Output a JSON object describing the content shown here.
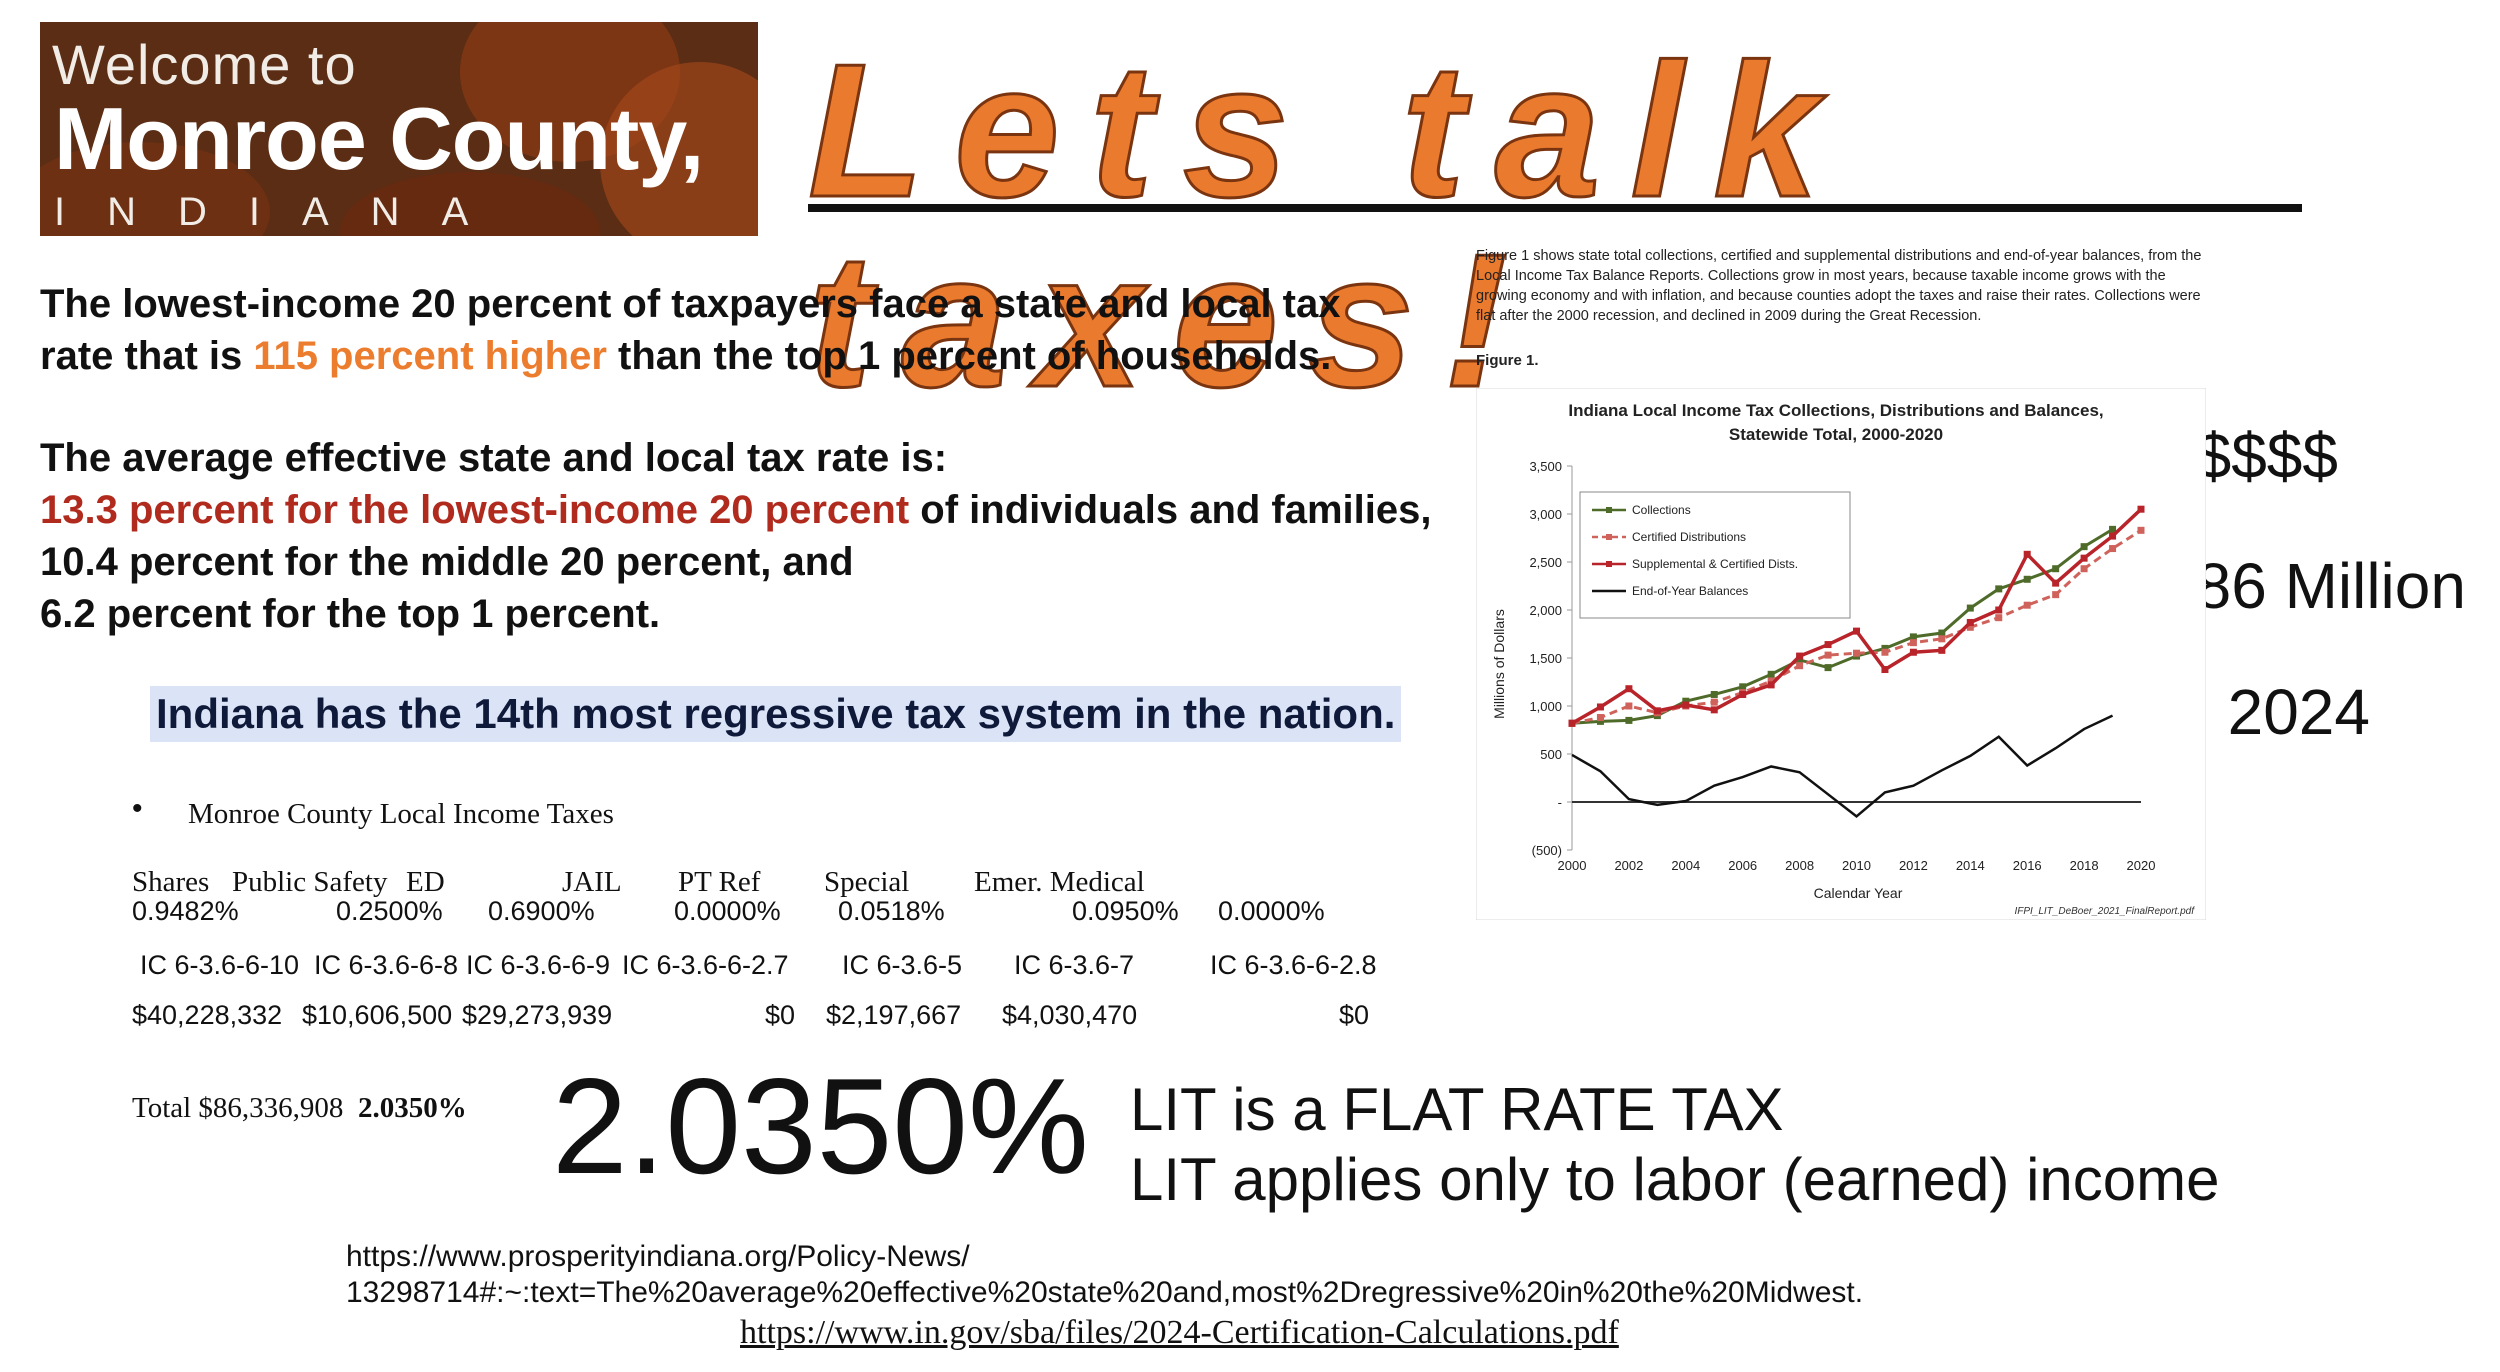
{
  "banner": {
    "line1": "Welcome to",
    "line2": "Monroe County,",
    "line3": "INDIANA"
  },
  "title": "Lets talk taxes!",
  "intro": {
    "p1_a": "The lowest-income 20 percent of taxpayers face a state and local tax",
    "p1_b": "rate that is ",
    "p1_highlight": "115 percent higher",
    "p1_c": " than the top 1 percent of households.",
    "p2_a": "The average effective state and local tax rate is:",
    "p2_red": "13.3 percent for the lowest-income 20 percent",
    "p2_b": " of individuals and families,",
    "p2_c": "10.4 percent for the middle 20 percent, and",
    "p2_d": "6.2 percent for the top 1 percent."
  },
  "highlight": "Indiana has the 14th most regressive tax system in the nation.",
  "lit_table": {
    "bullet": "•",
    "caption": "Monroe County Local Income Taxes",
    "headers": [
      "Shares",
      "Public Safety",
      "ED",
      "JAIL",
      "PT Ref",
      "Special",
      "Emer. Medical"
    ],
    "rates": [
      "0.9482%",
      "0.2500%",
      "0.6900%",
      "0.0000%",
      "0.0518%",
      "0.0950%",
      "0.0000%"
    ],
    "codes": [
      "IC 6-3.6-6-10",
      "IC 6-3.6-6-8",
      "IC 6-3.6-6-9",
      "IC 6-3.6-6-2.7",
      "IC 6-3.6-5",
      "IC 6-3.6-7",
      "IC 6-3.6-6-2.8"
    ],
    "amounts": [
      "$40,228,332",
      "$10,606,500",
      "$29,273,939",
      "$0",
      "$2,197,667",
      "$4,030,470",
      "$0"
    ],
    "total_label": "Total $86,336,908",
    "total_rate": "2.0350%"
  },
  "big_rate": "2.0350%",
  "lit_notes": [
    "LIT is a FLAT RATE TAX",
    "LIT applies only to labor (earned) income"
  ],
  "urls": {
    "line1": "https://www.prosperityindiana.org/Policy-News/",
    "line2": "13298714#:~:text=The%20average%20effective%20state%20and,most%2Dregressive%20in%20the%20Midwest.",
    "line3": "https://www.in.gov/sba/files/2024-Certification-Calculations.pdf"
  },
  "money": {
    "symbols": "$$$$$",
    "amount": "$86 Million",
    "year": "in 2024"
  },
  "figure": {
    "description": "Figure 1 shows state total collections, certified and supplemental distributions and end-of-year balances, from the Local Income Tax Balance Reports. Collections grow in most years, because taxable income grows with the growing economy and with inflation, and because counties adopt the taxes and raise their rates. Collections were flat after the 2000 recession, and declined in 2009 during the Great Recession.",
    "label": "Figure 1."
  },
  "chart_data": {
    "type": "line",
    "title": "Indiana Local Income Tax Collections, Distributions and Balances, Statewide Total, 2000-2020",
    "xlabel": "Calendar Year",
    "ylabel": "Millions of Dollars",
    "source": "IFPI_LIT_DeBoer_2021_FinalReport.pdf",
    "xlim": [
      2000,
      2020
    ],
    "ylim": [
      -500,
      3500
    ],
    "x_ticks": [
      "2000",
      "2002",
      "2004",
      "2006",
      "2008",
      "2010",
      "2012",
      "2014",
      "2016",
      "2018",
      "2020"
    ],
    "y_ticks": [
      "(500)",
      "-",
      "500",
      "1,000",
      "1,500",
      "2,000",
      "2,500",
      "3,000",
      "3,500"
    ],
    "y_tick_values": [
      -500,
      0,
      500,
      1000,
      1500,
      2000,
      2500,
      3000,
      3500
    ],
    "grid": false,
    "legend_position": "top-left",
    "x": [
      2000,
      2001,
      2002,
      2003,
      2004,
      2005,
      2006,
      2007,
      2008,
      2009,
      2010,
      2011,
      2012,
      2013,
      2014,
      2015,
      2016,
      2017,
      2018,
      2019,
      2020
    ],
    "series": [
      {
        "name": "Collections",
        "color": "#4f6b2a",
        "style": "solid-marker",
        "values": [
          820,
          840,
          850,
          900,
          1050,
          1120,
          1200,
          1330,
          1480,
          1400,
          1520,
          1600,
          1720,
          1760,
          2020,
          2220,
          2320,
          2430,
          2660,
          2840,
          null
        ]
      },
      {
        "name": "Certified Distributions",
        "color": "#d0625c",
        "style": "dashed-marker",
        "values": [
          820,
          880,
          1000,
          930,
          1000,
          1040,
          1140,
          1260,
          1420,
          1530,
          1550,
          1560,
          1660,
          1700,
          1820,
          1920,
          2050,
          2160,
          2430,
          2640,
          2830
        ]
      },
      {
        "name": "Supplemental & Certified Dists.",
        "color": "#b8242a",
        "style": "solid-marker",
        "values": [
          820,
          990,
          1180,
          950,
          1010,
          960,
          1120,
          1220,
          1520,
          1640,
          1780,
          1380,
          1560,
          1580,
          1870,
          2000,
          2580,
          2280,
          2540,
          2770,
          3050
        ]
      },
      {
        "name": "End-of-Year Balances",
        "color": "#111111",
        "style": "solid",
        "values": [
          490,
          320,
          30,
          -30,
          10,
          170,
          260,
          370,
          310,
          80,
          -150,
          100,
          170,
          330,
          480,
          680,
          380,
          560,
          760,
          900,
          null
        ]
      }
    ]
  }
}
